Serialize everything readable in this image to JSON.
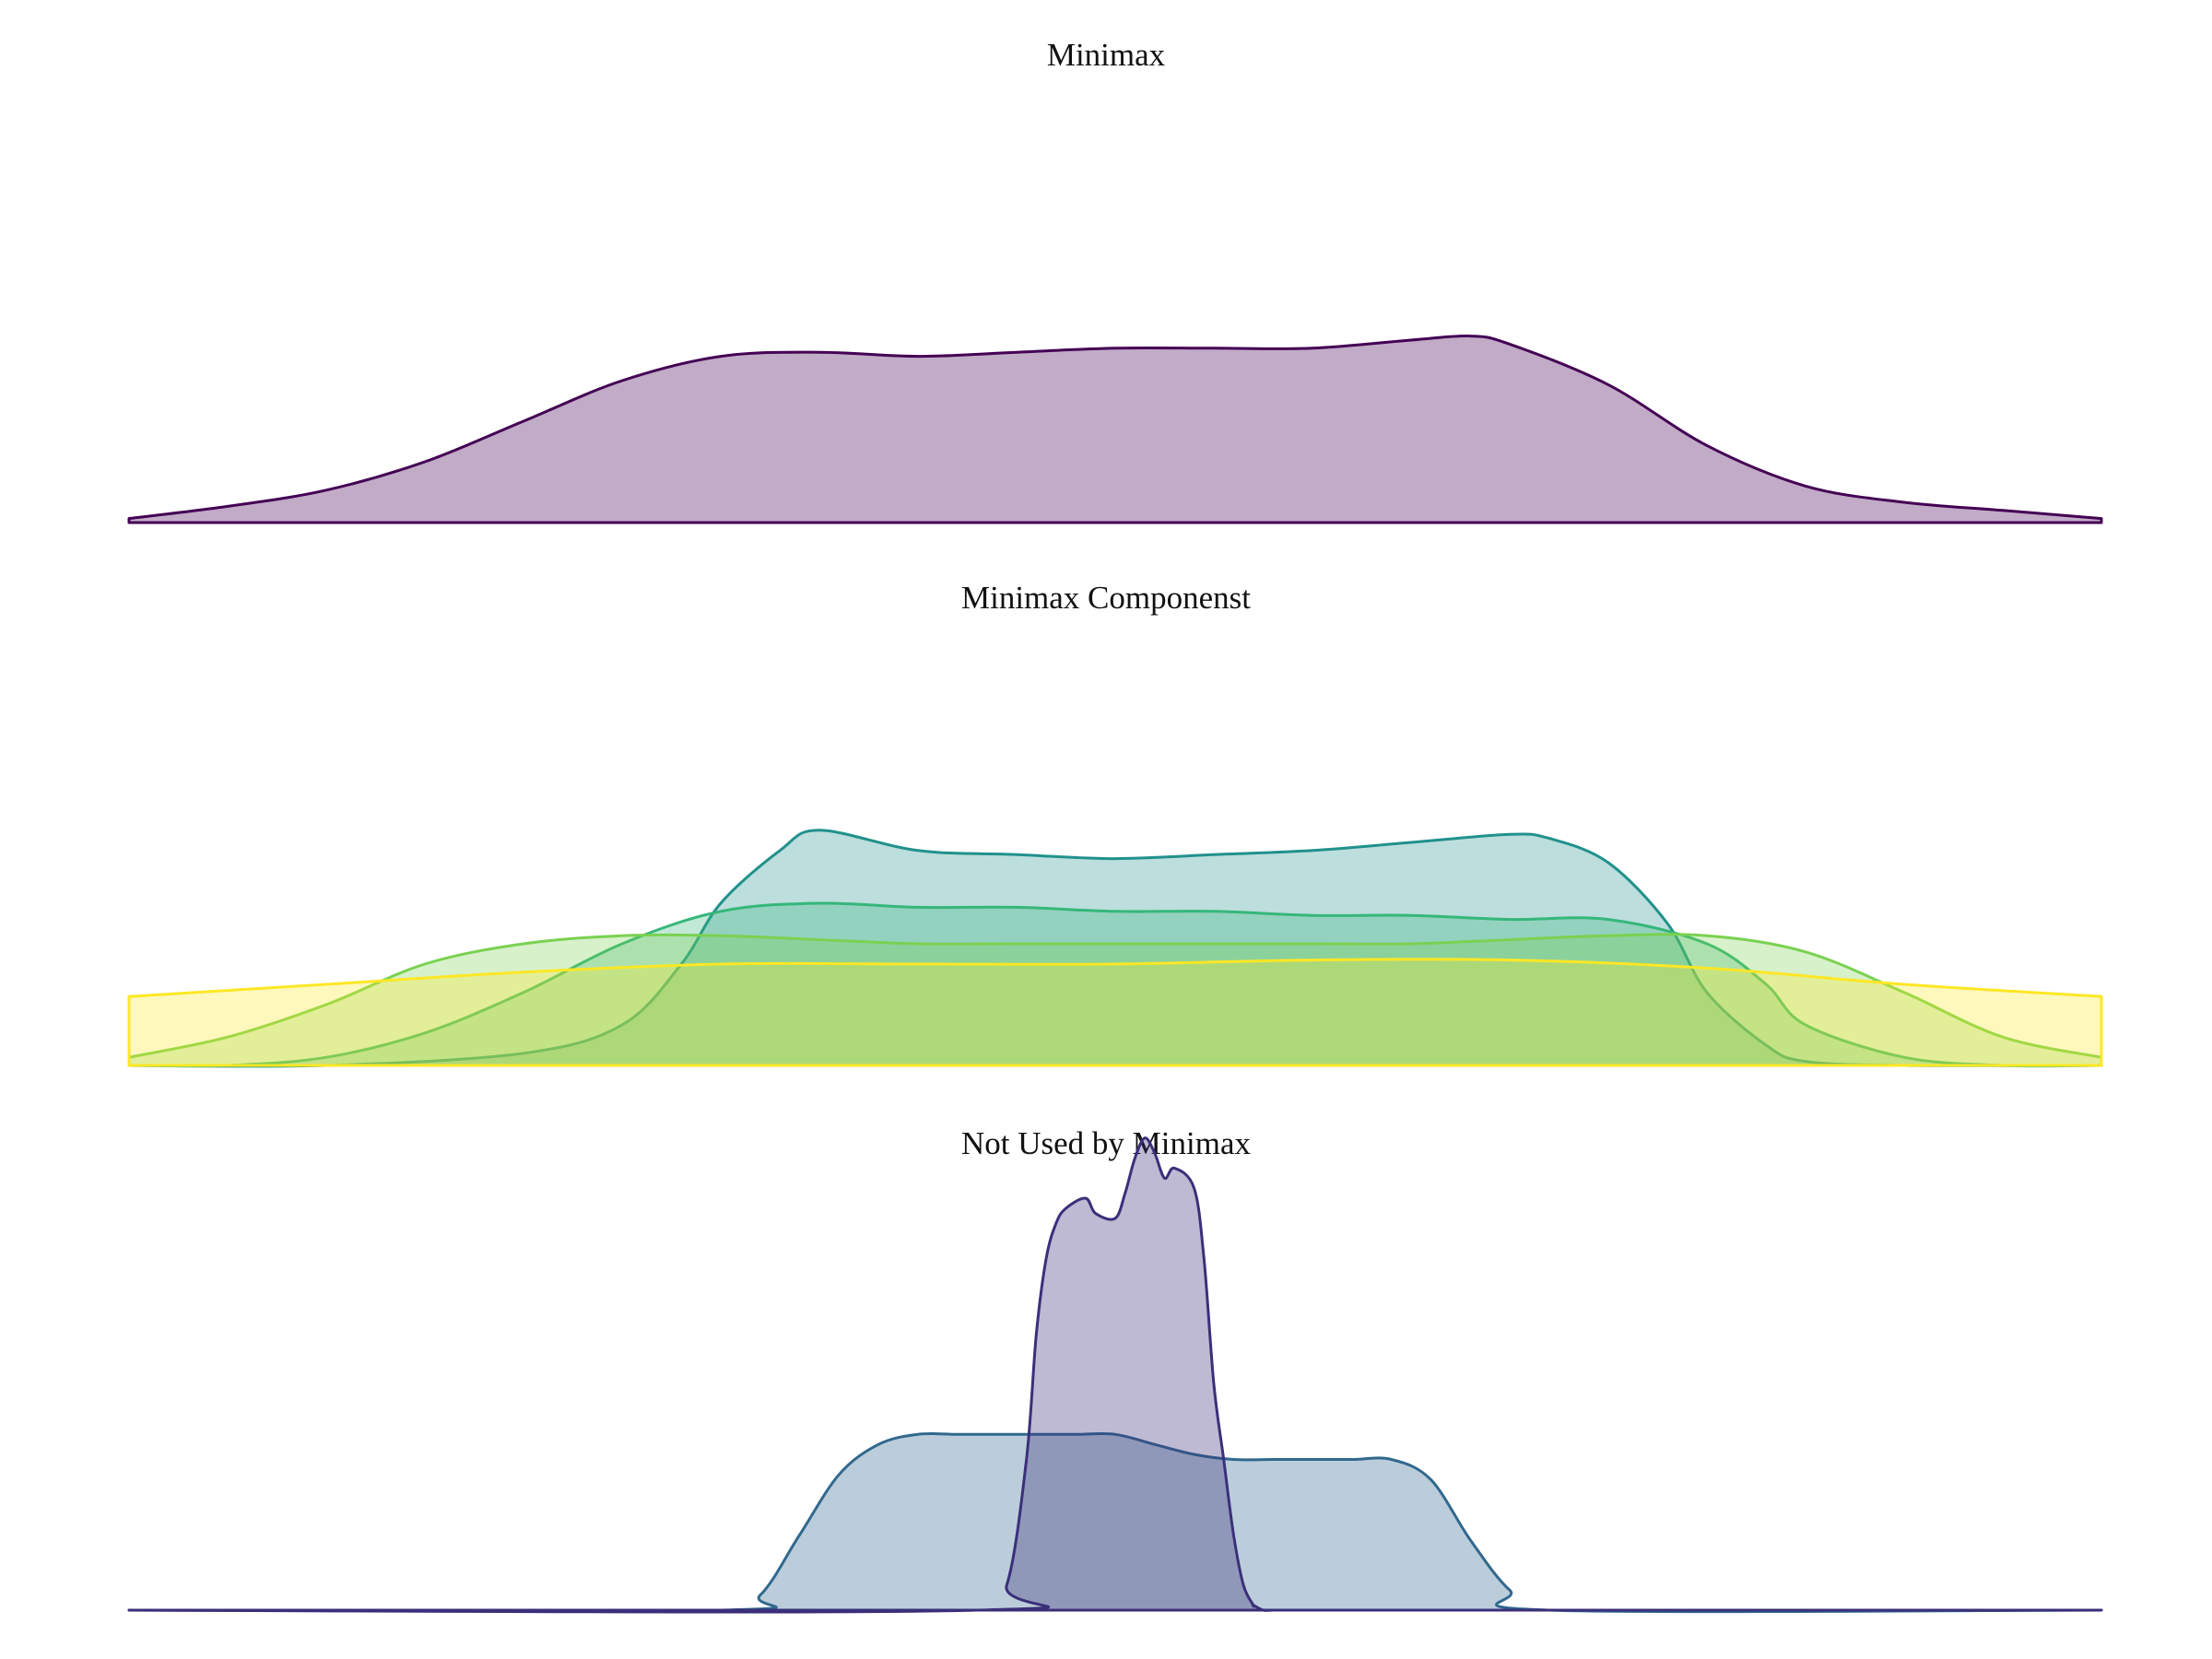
{
  "chart_data": [
    {
      "type": "area",
      "title": "Minimax",
      "xlabel": "",
      "ylabel": "",
      "xlim": [
        0,
        1
      ],
      "ylim": [
        0,
        1
      ],
      "grid": false,
      "legend": "none",
      "fill_opacity": 0.33,
      "series": [
        {
          "color": "#440154",
          "x": [
            0,
            0.05,
            0.1,
            0.15,
            0.2,
            0.25,
            0.3,
            0.35,
            0.4,
            0.45,
            0.5,
            0.55,
            0.6,
            0.65,
            0.68,
            0.7,
            0.75,
            0.8,
            0.85,
            0.9,
            0.95,
            1
          ],
          "y": [
            0.01,
            0.04,
            0.08,
            0.15,
            0.25,
            0.35,
            0.41,
            0.42,
            0.41,
            0.42,
            0.43,
            0.43,
            0.43,
            0.45,
            0.46,
            0.44,
            0.34,
            0.19,
            0.09,
            0.05,
            0.03,
            0.01
          ]
        }
      ]
    },
    {
      "type": "area",
      "title": "Minimax Componenst",
      "xlabel": "",
      "ylabel": "",
      "xlim": [
        0,
        1
      ],
      "ylim": [
        0,
        1
      ],
      "grid": false,
      "legend": "none",
      "fill_opacity": 0.3,
      "series": [
        {
          "color": "#21918c",
          "x": [
            0,
            0.1,
            0.2,
            0.25,
            0.28,
            0.3,
            0.33,
            0.35,
            0.4,
            0.45,
            0.5,
            0.55,
            0.6,
            0.65,
            0.7,
            0.72,
            0.75,
            0.78,
            0.8,
            0.83,
            0.85,
            0.9,
            1
          ],
          "y": [
            0,
            0,
            0.03,
            0.1,
            0.25,
            0.4,
            0.53,
            0.58,
            0.53,
            0.52,
            0.51,
            0.52,
            0.53,
            0.55,
            0.57,
            0.56,
            0.5,
            0.35,
            0.18,
            0.05,
            0.01,
            0,
            0
          ]
        },
        {
          "color": "#35b779",
          "x": [
            0,
            0.05,
            0.1,
            0.15,
            0.2,
            0.25,
            0.3,
            0.35,
            0.4,
            0.45,
            0.5,
            0.55,
            0.6,
            0.65,
            0.7,
            0.75,
            0.8,
            0.83,
            0.85,
            0.9,
            0.95,
            1
          ],
          "y": [
            0,
            0,
            0.02,
            0.08,
            0.18,
            0.3,
            0.38,
            0.4,
            0.39,
            0.39,
            0.38,
            0.38,
            0.37,
            0.37,
            0.36,
            0.36,
            0.3,
            0.2,
            0.1,
            0.02,
            0,
            0
          ]
        },
        {
          "color": "#7ad151",
          "x": [
            0,
            0.05,
            0.1,
            0.15,
            0.2,
            0.25,
            0.3,
            0.35,
            0.4,
            0.45,
            0.5,
            0.55,
            0.6,
            0.65,
            0.7,
            0.75,
            0.8,
            0.85,
            0.9,
            0.95,
            1
          ],
          "y": [
            0.02,
            0.07,
            0.15,
            0.25,
            0.3,
            0.32,
            0.32,
            0.31,
            0.3,
            0.3,
            0.3,
            0.3,
            0.3,
            0.3,
            0.31,
            0.32,
            0.32,
            0.28,
            0.18,
            0.07,
            0.02
          ]
        },
        {
          "color": "#fde725",
          "x": [
            0,
            0.1,
            0.2,
            0.3,
            0.4,
            0.5,
            0.6,
            0.7,
            0.8,
            0.9,
            1
          ],
          "y": [
            0.17,
            0.2,
            0.23,
            0.25,
            0.25,
            0.25,
            0.26,
            0.26,
            0.24,
            0.2,
            0.17
          ]
        }
      ]
    },
    {
      "type": "area",
      "title": "Not Used by Minimax",
      "xlabel": "",
      "ylabel": "",
      "xlim": [
        0,
        1
      ],
      "ylim": [
        0,
        1
      ],
      "grid": false,
      "legend": "none",
      "fill_opacity": 0.33,
      "series": [
        {
          "color": "#31688e",
          "x": [
            0,
            0.3,
            0.32,
            0.34,
            0.36,
            0.38,
            0.4,
            0.42,
            0.44,
            0.46,
            0.48,
            0.5,
            0.52,
            0.54,
            0.56,
            0.58,
            0.6,
            0.62,
            0.64,
            0.66,
            0.68,
            0.7,
            0.72,
            1
          ],
          "y": [
            0,
            0,
            0.03,
            0.15,
            0.27,
            0.33,
            0.35,
            0.35,
            0.35,
            0.35,
            0.35,
            0.35,
            0.33,
            0.31,
            0.3,
            0.3,
            0.3,
            0.3,
            0.3,
            0.26,
            0.14,
            0.04,
            0,
            0
          ]
        },
        {
          "color": "#3b2f7a",
          "x": [
            0,
            0.43,
            0.445,
            0.455,
            0.46,
            0.465,
            0.47,
            0.475,
            0.485,
            0.49,
            0.5,
            0.505,
            0.51,
            0.515,
            0.52,
            0.525,
            0.53,
            0.54,
            0.545,
            0.55,
            0.555,
            0.56,
            0.565,
            0.57,
            0.57,
            0.575,
            0.58,
            0.59,
            1
          ],
          "y": [
            0,
            0,
            0.05,
            0.3,
            0.55,
            0.7,
            0.77,
            0.8,
            0.82,
            0.79,
            0.78,
            0.83,
            0.9,
            0.94,
            0.91,
            0.86,
            0.88,
            0.84,
            0.7,
            0.45,
            0.3,
            0.15,
            0.05,
            0.01,
            0.01,
            0,
            0,
            0,
            0
          ]
        }
      ]
    }
  ]
}
